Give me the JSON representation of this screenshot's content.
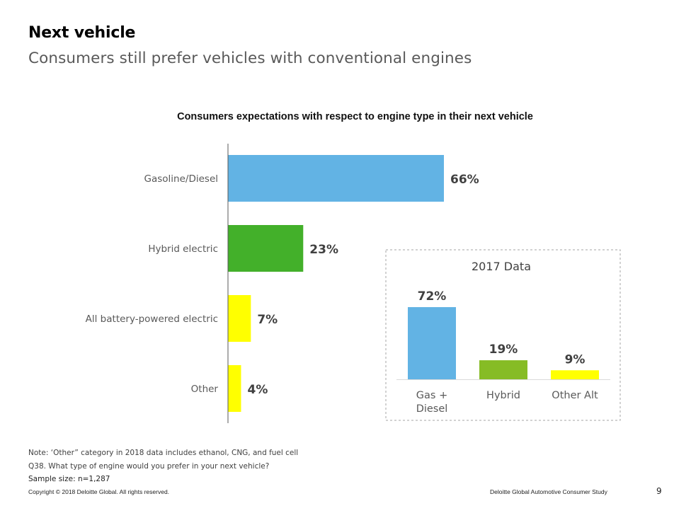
{
  "header": {
    "title": "Next vehicle",
    "subtitle": "Consumers still prefer vehicles with conventional engines"
  },
  "chart_data": [
    {
      "type": "bar",
      "orientation": "horizontal",
      "title": "Consumers expectations with respect to engine type in their next vehicle",
      "categories": [
        "Gasoline/Diesel",
        "Hybrid electric",
        "All battery-powered electric",
        "Other"
      ],
      "values": [
        66,
        23,
        7,
        4
      ],
      "labels": [
        "66%",
        "23%",
        "7%",
        "4%"
      ],
      "colors": [
        "#62b3e4",
        "#43b02a",
        "#ffff00",
        "#ffff00"
      ],
      "unit": "%",
      "xlabel": "",
      "ylabel": "",
      "xlim": [
        0,
        100
      ],
      "grid": false,
      "legend": "none"
    },
    {
      "type": "bar",
      "orientation": "vertical",
      "title": "2017 Data",
      "categories": [
        "Gas + Diesel",
        "Hybrid",
        "Other Alt"
      ],
      "category_lines": [
        [
          "Gas +",
          "Diesel"
        ],
        [
          "Hybrid"
        ],
        [
          "Other Alt"
        ]
      ],
      "values": [
        72,
        19,
        9
      ],
      "labels": [
        "72%",
        "19%",
        "9%"
      ],
      "colors": [
        "#62b3e4",
        "#86bc25",
        "#ffff00"
      ],
      "unit": "%",
      "ylim": [
        0,
        100
      ],
      "grid": false,
      "legend": "none"
    }
  ],
  "footer": {
    "note": "Note: ‘Other” category in 2018 data includes ethanol, CNG, and fuel cell",
    "question": "Q38. What type of engine would you prefer in your next vehicle?",
    "sample": "Sample size: n=1,287",
    "copyright": "Copyright © 2018 Deloitte Global. All rights reserved.",
    "study": "Deloitte Global Automotive Consumer Study",
    "page_number": "9"
  }
}
